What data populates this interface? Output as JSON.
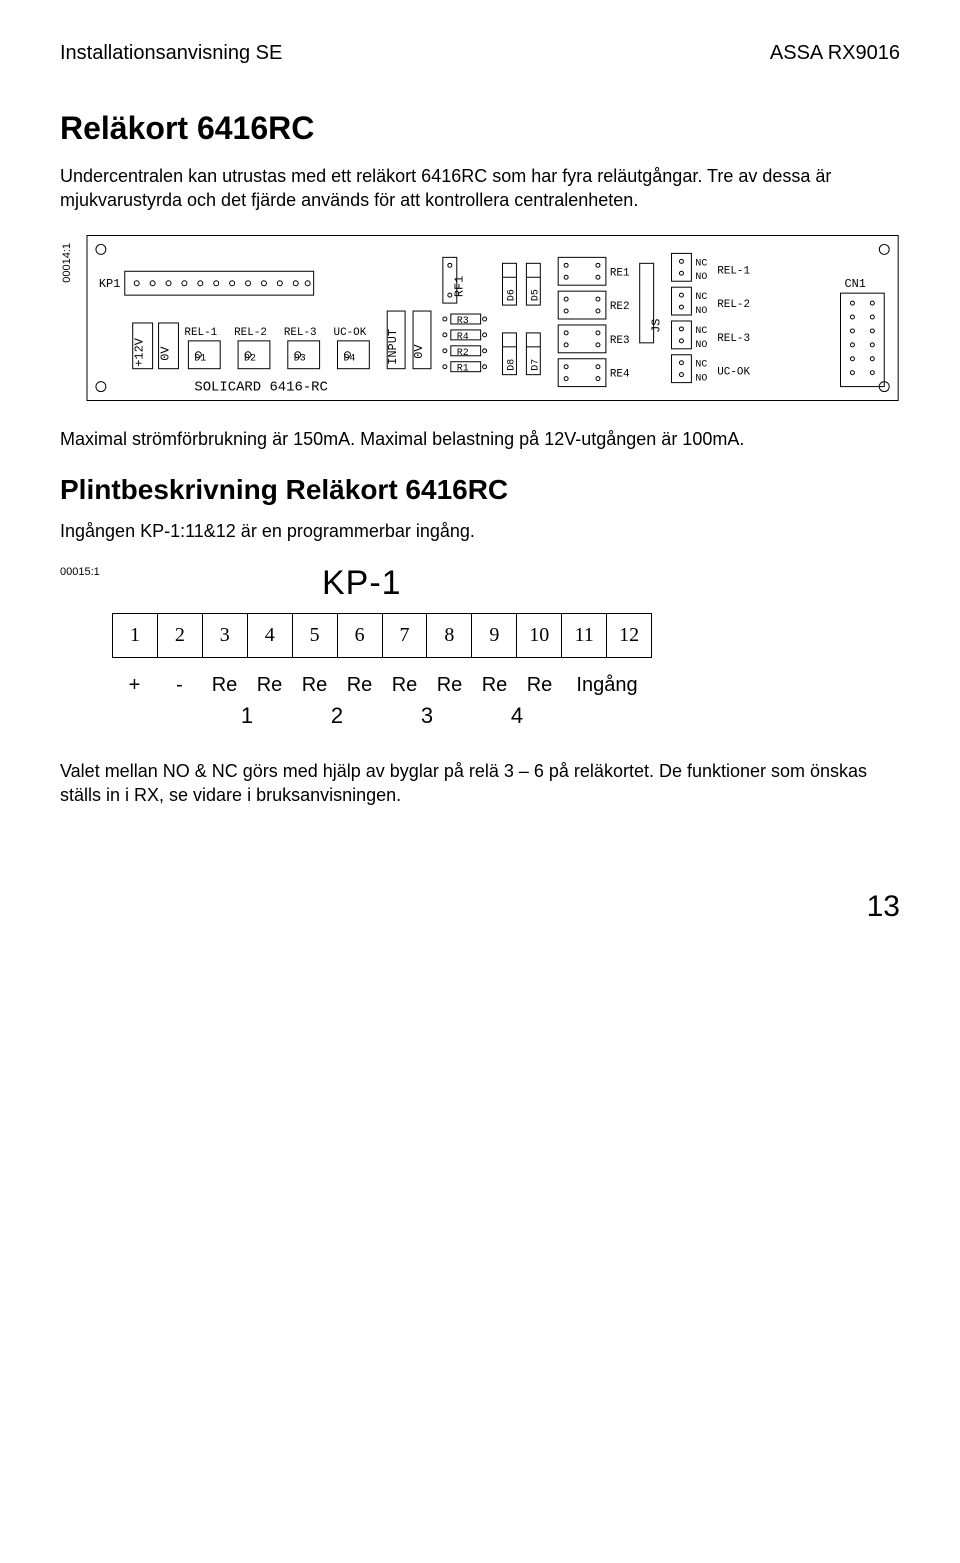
{
  "header": {
    "left": "Installationsanvisning SE",
    "right": "ASSA RX9016"
  },
  "section1": {
    "title": "Reläkort 6416RC",
    "para": "Undercentralen kan utrustas med ett reläkort 6416RC som har fyra reläutgångar. Tre av dessa är mjukvarustyrda och det fjärde används för att kontrollera centralenheten."
  },
  "pcb": {
    "sidelabel": "00014:1",
    "kp1": "KP1",
    "rail": [
      "+12V",
      "0V"
    ],
    "leds": [
      "REL-1",
      "REL-2",
      "REL-3",
      "UC-OK"
    ],
    "ledD": [
      "D1",
      "D2",
      "D3",
      "D4"
    ],
    "input_col": "INPUT",
    "input_0v": "0V",
    "rf": "RF1",
    "r_list": [
      "R3",
      "R4",
      "R2",
      "R1"
    ],
    "d_diodes": [
      "D6",
      "D5",
      "D8",
      "D7"
    ],
    "re_list": [
      "RE1",
      "RE2",
      "RE3",
      "RE4"
    ],
    "js": "JS",
    "rel_out": [
      {
        "top": "NC",
        "bot": "NO",
        "name": "REL-1"
      },
      {
        "top": "NC",
        "bot": "NO",
        "name": "REL-2"
      },
      {
        "top": "NC",
        "bot": "NO",
        "name": "REL-3"
      },
      {
        "top": "NC",
        "bot": "NO",
        "name": "UC-OK"
      }
    ],
    "cn1": "CN1",
    "boardname": "SOLICARD 6416-RC"
  },
  "para2": "Maximal strömförbrukning är 150mA. Maximal belastning på 12V-utgången är 100mA.",
  "section2": {
    "title": "Plintbeskrivning Reläkort 6416RC",
    "para": "Ingången KP-1:11&12 är en programmerbar ingång."
  },
  "kp1_diagram": {
    "sidelabel": "00015:1",
    "title": "KP-1",
    "pins": [
      "1",
      "2",
      "3",
      "4",
      "5",
      "6",
      "7",
      "8",
      "9",
      "10",
      "11",
      "12"
    ],
    "labels": [
      "+",
      "-",
      "Re",
      "Re",
      "Re",
      "Re",
      "Re",
      "Re",
      "Re",
      "Re",
      "Ingång"
    ],
    "groups": [
      "1",
      "2",
      "3",
      "4"
    ]
  },
  "para3": "Valet mellan NO & NC görs med hjälp av byglar på relä 3 – 6 på reläkortet. De funktioner som önskas ställs in i RX, se vidare i bruksanvisningen.",
  "pagenum": "13"
}
